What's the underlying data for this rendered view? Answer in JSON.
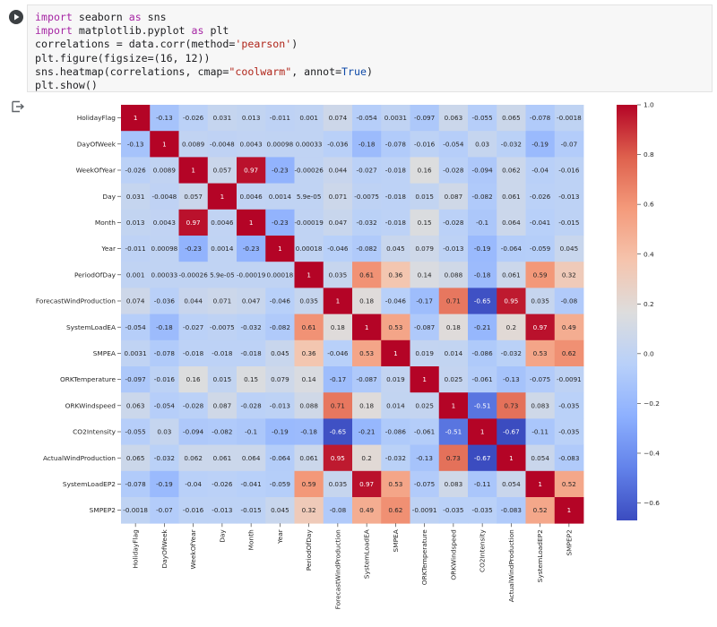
{
  "notebook": {
    "code_lines": [
      [
        {
          "t": "import",
          "c": "kw"
        },
        {
          "t": " seaborn "
        },
        {
          "t": "as",
          "c": "kw"
        },
        {
          "t": " sns"
        }
      ],
      [
        {
          "t": "import",
          "c": "kw"
        },
        {
          "t": " matplotlib.pyplot "
        },
        {
          "t": "as",
          "c": "kw"
        },
        {
          "t": " plt"
        }
      ],
      [
        {
          "t": "correlations = data.corr(method="
        },
        {
          "t": "'pearson'",
          "c": "str"
        },
        {
          "t": ")"
        }
      ],
      [
        {
          "t": "plt.figure(figsize=(16, 12))"
        }
      ],
      [
        {
          "t": "sns.heatmap(correlations, cmap="
        },
        {
          "t": "\"coolwarm\"",
          "c": "str"
        },
        {
          "t": ", annot="
        },
        {
          "t": "True",
          "c": "kwc"
        },
        {
          "t": ")"
        }
      ],
      [
        {
          "t": "plt.show()"
        }
      ]
    ],
    "icons": {
      "run": "play-icon",
      "output": "output-redirect-icon"
    }
  },
  "chart_data": {
    "type": "heatmap",
    "labels": [
      "HolidayFlag",
      "DayOfWeek",
      "WeekOfYear",
      "Day",
      "Month",
      "Year",
      "PeriodOfDay",
      "ForecastWindProduction",
      "SystemLoadEA",
      "SMPEA",
      "ORKTemperature",
      "ORKWindspeed",
      "CO2Intensity",
      "ActualWindProduction",
      "SystemLoadEP2",
      "SMPEP2"
    ],
    "values": [
      [
        1,
        -0.13,
        -0.026,
        0.031,
        0.013,
        -0.011,
        0.001,
        0.074,
        -0.054,
        0.0031,
        -0.097,
        0.063,
        -0.055,
        0.065,
        -0.078,
        -0.0018
      ],
      [
        -0.13,
        1,
        0.0089,
        -0.0048,
        0.0043,
        0.00098,
        0.00033,
        -0.036,
        -0.18,
        -0.078,
        -0.016,
        -0.054,
        0.03,
        -0.032,
        -0.19,
        -0.07
      ],
      [
        -0.026,
        0.0089,
        1,
        0.057,
        0.97,
        -0.23,
        -0.00026,
        0.044,
        -0.027,
        -0.018,
        0.16,
        -0.028,
        -0.094,
        0.062,
        -0.04,
        -0.016
      ],
      [
        0.031,
        -0.0048,
        0.057,
        1,
        0.0046,
        0.0014,
        5.9e-05,
        0.071,
        -0.0075,
        -0.018,
        0.015,
        0.087,
        -0.082,
        0.061,
        -0.026,
        -0.013
      ],
      [
        0.013,
        0.0043,
        0.97,
        0.0046,
        1,
        -0.23,
        -0.00019,
        0.047,
        -0.032,
        -0.018,
        0.15,
        -0.028,
        -0.1,
        0.064,
        -0.041,
        -0.015
      ],
      [
        -0.011,
        0.00098,
        -0.23,
        0.0014,
        -0.23,
        1,
        0.00018,
        -0.046,
        -0.082,
        0.045,
        0.079,
        -0.013,
        -0.19,
        -0.064,
        -0.059,
        0.045
      ],
      [
        0.001,
        0.00033,
        -0.00026,
        5.9e-05,
        -0.00019,
        0.00018,
        1,
        0.035,
        0.61,
        0.36,
        0.14,
        0.088,
        -0.18,
        0.061,
        0.59,
        0.32
      ],
      [
        0.074,
        -0.036,
        0.044,
        0.071,
        0.047,
        -0.046,
        0.035,
        1,
        0.18,
        -0.046,
        -0.17,
        0.71,
        -0.65,
        0.95,
        0.035,
        -0.08
      ],
      [
        -0.054,
        -0.18,
        -0.027,
        -0.0075,
        -0.032,
        -0.082,
        0.61,
        0.18,
        1,
        0.53,
        -0.087,
        0.18,
        -0.21,
        0.2,
        0.97,
        0.49
      ],
      [
        0.0031,
        -0.078,
        -0.018,
        -0.018,
        -0.018,
        0.045,
        0.36,
        -0.046,
        0.53,
        1,
        0.019,
        0.014,
        -0.086,
        -0.032,
        0.53,
        0.62
      ],
      [
        -0.097,
        -0.016,
        0.16,
        0.015,
        0.15,
        0.079,
        0.14,
        -0.17,
        -0.087,
        0.019,
        1,
        0.025,
        -0.061,
        -0.13,
        -0.075,
        -0.0091
      ],
      [
        0.063,
        -0.054,
        -0.028,
        0.087,
        -0.028,
        -0.013,
        0.088,
        0.71,
        0.18,
        0.014,
        0.025,
        1,
        -0.51,
        0.73,
        0.083,
        -0.035
      ],
      [
        -0.055,
        0.03,
        -0.094,
        -0.082,
        -0.1,
        -0.19,
        -0.18,
        -0.65,
        -0.21,
        -0.086,
        -0.061,
        -0.51,
        1,
        -0.67,
        -0.11,
        -0.035
      ],
      [
        0.065,
        -0.032,
        0.062,
        0.061,
        0.064,
        -0.064,
        0.061,
        0.95,
        0.2,
        -0.032,
        -0.13,
        0.73,
        -0.67,
        1,
        0.054,
        -0.083
      ],
      [
        -0.078,
        -0.19,
        -0.04,
        -0.026,
        -0.041,
        -0.059,
        0.59,
        0.035,
        0.97,
        0.53,
        -0.075,
        0.083,
        -0.11,
        0.054,
        1,
        0.52
      ],
      [
        -0.0018,
        -0.07,
        -0.016,
        -0.013,
        -0.015,
        0.045,
        0.32,
        -0.08,
        0.49,
        0.62,
        -0.0091,
        -0.035,
        -0.035,
        -0.083,
        0.52,
        1
      ]
    ],
    "annotations": [
      [
        "1",
        "-0.13",
        "-0.026",
        "0.031",
        "0.013",
        "-0.011",
        "0.001",
        "0.074",
        "-0.054",
        "0.0031",
        "-0.097",
        "0.063",
        "-0.055",
        "0.065",
        "-0.078",
        "-0.0018"
      ],
      [
        "-0.13",
        "1",
        "0.0089",
        "-0.0048",
        "0.0043",
        "0.00098",
        "0.00033",
        "-0.036",
        "-0.18",
        "-0.078",
        "-0.016",
        "-0.054",
        "0.03",
        "-0.032",
        "-0.19",
        "-0.07"
      ],
      [
        "-0.026",
        "0.0089",
        "1",
        "0.057",
        "0.97",
        "-0.23",
        "-0.00026",
        "0.044",
        "-0.027",
        "-0.018",
        "0.16",
        "-0.028",
        "-0.094",
        "0.062",
        "-0.04",
        "-0.016"
      ],
      [
        "0.031",
        "-0.0048",
        "0.057",
        "1",
        "0.0046",
        "0.0014",
        "5.9e-05",
        "0.071",
        "-0.0075",
        "-0.018",
        "0.015",
        "0.087",
        "-0.082",
        "0.061",
        "-0.026",
        "-0.013"
      ],
      [
        "0.013",
        "0.0043",
        "0.97",
        "0.0046",
        "1",
        "-0.23",
        "-0.00019",
        "0.047",
        "-0.032",
        "-0.018",
        "0.15",
        "-0.028",
        "-0.1",
        "0.064",
        "-0.041",
        "-0.015"
      ],
      [
        "-0.011",
        "0.00098",
        "-0.23",
        "0.0014",
        "-0.23",
        "1",
        "0.00018",
        "-0.046",
        "-0.082",
        "0.045",
        "0.079",
        "-0.013",
        "-0.19",
        "-0.064",
        "-0.059",
        "0.045"
      ],
      [
        "0.001",
        "0.00033",
        "-0.00026",
        "5.9e-05",
        "-0.00019",
        "0.00018",
        "1",
        "0.035",
        "0.61",
        "0.36",
        "0.14",
        "0.088",
        "-0.18",
        "0.061",
        "0.59",
        "0.32"
      ],
      [
        "0.074",
        "-0.036",
        "0.044",
        "0.071",
        "0.047",
        "-0.046",
        "0.035",
        "1",
        "0.18",
        "-0.046",
        "-0.17",
        "0.71",
        "-0.65",
        "0.95",
        "0.035",
        "-0.08"
      ],
      [
        "-0.054",
        "-0.18",
        "-0.027",
        "-0.0075",
        "-0.032",
        "-0.082",
        "0.61",
        "0.18",
        "1",
        "0.53",
        "-0.087",
        "0.18",
        "-0.21",
        "0.2",
        "0.97",
        "0.49"
      ],
      [
        "0.0031",
        "-0.078",
        "-0.018",
        "-0.018",
        "-0.018",
        "0.045",
        "0.36",
        "-0.046",
        "0.53",
        "1",
        "0.019",
        "0.014",
        "-0.086",
        "-0.032",
        "0.53",
        "0.62"
      ],
      [
        "-0.097",
        "-0.016",
        "0.16",
        "0.015",
        "0.15",
        "0.079",
        "0.14",
        "-0.17",
        "-0.087",
        "0.019",
        "1",
        "0.025",
        "-0.061",
        "-0.13",
        "-0.075",
        "-0.0091"
      ],
      [
        "0.063",
        "-0.054",
        "-0.028",
        "0.087",
        "-0.028",
        "-0.013",
        "0.088",
        "0.71",
        "0.18",
        "0.014",
        "0.025",
        "1",
        "-0.51",
        "0.73",
        "0.083",
        "-0.035"
      ],
      [
        "-0.055",
        "0.03",
        "-0.094",
        "-0.082",
        "-0.1",
        "-0.19",
        "-0.18",
        "-0.65",
        "-0.21",
        "-0.086",
        "-0.061",
        "-0.51",
        "1",
        "-0.67",
        "-0.11",
        "-0.035"
      ],
      [
        "0.065",
        "-0.032",
        "0.062",
        "0.061",
        "0.064",
        "-0.064",
        "0.061",
        "0.95",
        "0.2",
        "-0.032",
        "-0.13",
        "0.73",
        "-0.67",
        "1",
        "0.054",
        "-0.083"
      ],
      [
        "-0.078",
        "-0.19",
        "-0.04",
        "-0.026",
        "-0.041",
        "-0.059",
        "0.59",
        "0.035",
        "0.97",
        "0.53",
        "-0.075",
        "0.083",
        "-0.11",
        "0.054",
        "1",
        "0.52"
      ],
      [
        "-0.0018",
        "-0.07",
        "-0.016",
        "-0.013",
        "-0.015",
        "0.045",
        "0.32",
        "-0.08",
        "0.49",
        "0.62",
        "-0.0091",
        "-0.035",
        "-0.035",
        "-0.083",
        "0.52",
        "1"
      ]
    ],
    "colormap": "coolwarm",
    "colorbar": {
      "vmin": -0.67,
      "vmax": 1.0,
      "ticks": [
        1.0,
        0.8,
        0.6,
        0.4,
        0.2,
        0.0,
        -0.2,
        -0.4,
        -0.6
      ],
      "tick_labels": [
        "1.0",
        "0.8",
        "0.6",
        "0.4",
        "0.2",
        "0.0",
        "−0.2",
        "−0.4",
        "−0.6"
      ]
    },
    "grid": false
  }
}
